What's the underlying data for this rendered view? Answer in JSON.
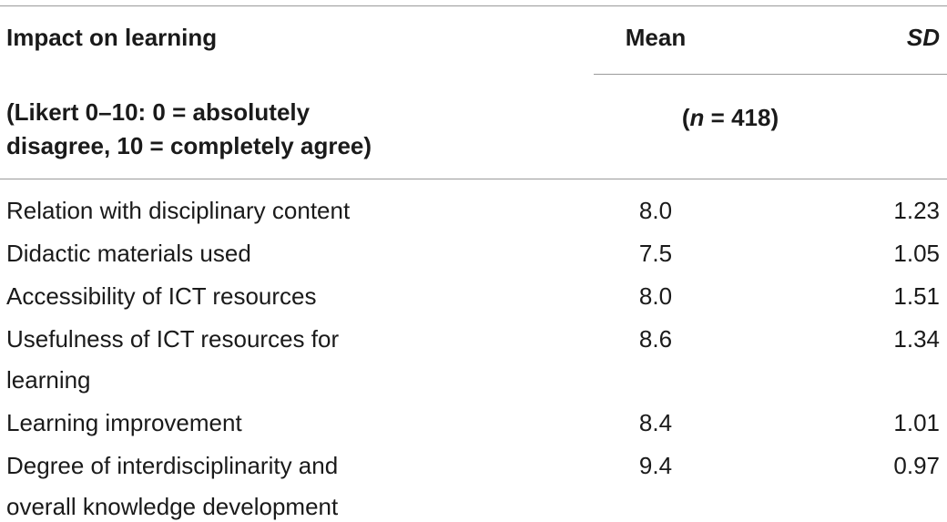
{
  "table": {
    "header": {
      "col1": "Impact on learning",
      "col2": "Mean",
      "col3": "SD",
      "sub_col1_line1": "(Likert 0–10: 0 = absolutely",
      "sub_col1_line2": "disagree, 10 = completely agree)",
      "n_open": "(",
      "n_var": "n",
      "n_rest": " = 418)"
    },
    "rows": [
      {
        "label_lines": [
          "Relation with disciplinary content"
        ],
        "mean": "8.0",
        "sd": "1.23"
      },
      {
        "label_lines": [
          "Didactic materials used"
        ],
        "mean": "7.5",
        "sd": "1.05"
      },
      {
        "label_lines": [
          "Accessibility of ICT resources"
        ],
        "mean": "8.0",
        "sd": "1.51"
      },
      {
        "label_lines": [
          "Usefulness of ICT resources for",
          "learning"
        ],
        "mean": "8.6",
        "sd": "1.34"
      },
      {
        "label_lines": [
          "Learning improvement"
        ],
        "mean": "8.4",
        "sd": "1.01"
      },
      {
        "label_lines": [
          "Degree of interdisciplinarity and",
          "overall knowledge development"
        ],
        "mean": "9.4",
        "sd": "0.97"
      }
    ]
  }
}
